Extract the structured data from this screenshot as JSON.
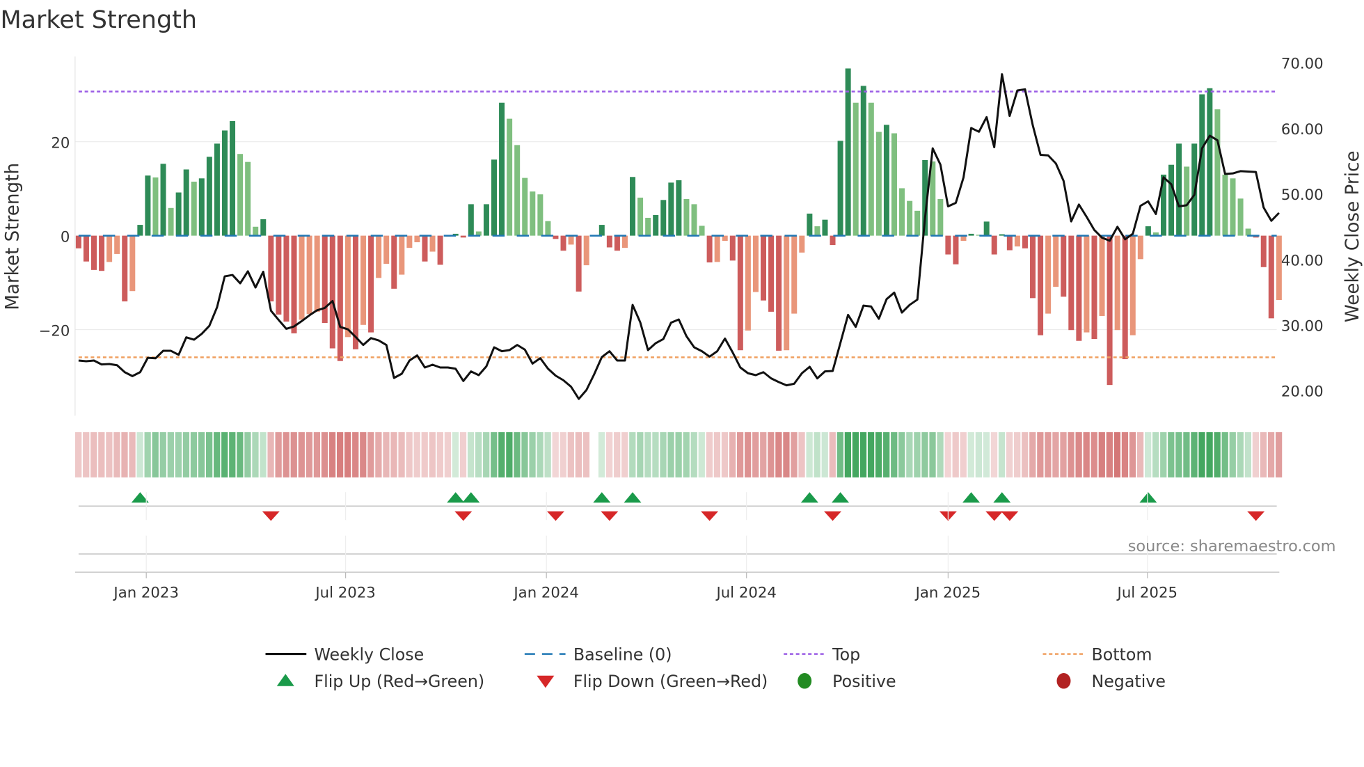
{
  "chart_data": {
    "type": "bar",
    "title": "Market Strength",
    "ylabel": "Market Strength",
    "y2label": "Weekly Close Price",
    "ylim": [
      -38,
      38
    ],
    "y2lim": [
      15,
      70
    ],
    "yticks": [
      {
        "v": 20,
        "label": "20"
      },
      {
        "v": 0,
        "label": "0"
      },
      {
        "v": -20,
        "label": "−20"
      }
    ],
    "y2ticks": [
      {
        "v": 70,
        "label": "70.00"
      },
      {
        "v": 60,
        "label": "60.00"
      },
      {
        "v": 50,
        "label": "50.00"
      },
      {
        "v": 40,
        "label": "40.00"
      },
      {
        "v": 30,
        "label": "30.00"
      },
      {
        "v": 20,
        "label": "20.00"
      }
    ],
    "xticks": [
      {
        "week": 8.8,
        "label": "Jan 2023"
      },
      {
        "week": 34.7,
        "label": "Jul 2023"
      },
      {
        "week": 60.8,
        "label": "Jan 2024"
      },
      {
        "week": 86.8,
        "label": "Jul 2024"
      },
      {
        "week": 113,
        "label": "Jan 2025"
      },
      {
        "week": 138.9,
        "label": "Jul 2025"
      }
    ],
    "frequency": "weekly",
    "top_level": 30.7,
    "bottom_level": -25.9,
    "baseline": 0,
    "strength": [
      -2.7,
      -5.5,
      -7.3,
      -7.5,
      -5.6,
      -3.9,
      -14,
      -11.8,
      2.3,
      12.8,
      12.4,
      15.3,
      5.9,
      9.2,
      14.1,
      11.5,
      12.2,
      16.8,
      19.6,
      22.4,
      24.4,
      17.4,
      15.7,
      1.9,
      3.5,
      -14,
      -16.8,
      -18.3,
      -20.8,
      -17.9,
      -16.7,
      -16.2,
      -18.6,
      -24,
      -26.7,
      -21.6,
      -24.2,
      -19,
      -20.6,
      -9,
      -6,
      -11.3,
      -8.3,
      -2.6,
      -1.4,
      -5.5,
      -3.4,
      -6.2,
      -0.2,
      0.4,
      -0.4,
      6.7,
      0.9,
      6.7,
      16.2,
      28.3,
      24.9,
      19.3,
      12.3,
      9.4,
      8.8,
      3.1,
      -0.7,
      -3.2,
      -1.9,
      -11.9,
      -6.3,
      0,
      2.3,
      -2.5,
      -3.2,
      -2.6,
      12.5,
      8.1,
      3.8,
      4.4,
      7.6,
      11.3,
      11.8,
      7.8,
      6.7,
      2.1,
      -5.7,
      -5.6,
      -1.1,
      -5.3,
      -24.4,
      -20.2,
      -12,
      -13.8,
      -16.2,
      -24.5,
      -24.4,
      -16.6,
      -3.6,
      4.7,
      2,
      3.4,
      -2,
      20.2,
      35.6,
      28.3,
      31.9,
      28.3,
      22.1,
      23.6,
      21.8,
      10.1,
      7.4,
      5.3,
      16.1,
      15.8,
      7.8,
      -4,
      -6.1,
      -1.1,
      0.4,
      0.2,
      3,
      -4,
      0.3,
      -3.1,
      -2.3,
      -2.7,
      -13.3,
      -21.2,
      -16.6,
      -10.9,
      -13,
      -20.1,
      -22.4,
      -20.6,
      -22,
      -17.1,
      -31.8,
      -20.1,
      -26.3,
      -21.2,
      -5,
      2,
      0.7,
      13,
      15.1,
      19.6,
      14.7,
      19.6,
      30.1,
      31.4,
      26.9,
      13,
      12.2,
      7.9,
      1.5,
      -0.4,
      -6.7,
      -17.6,
      -13.7
    ],
    "weekly_close": [
      24.56,
      24.45,
      24.56,
      23.96,
      24.03,
      23.85,
      22.79,
      22.19,
      22.79,
      24.98,
      24.91,
      26.05,
      26.05,
      25.44,
      28.1,
      27.74,
      28.63,
      29.86,
      32.7,
      37.4,
      37.61,
      36.34,
      38.17,
      35.7,
      38.1,
      32.16,
      30.75,
      29.4,
      29.76,
      30.57,
      31.46,
      32.23,
      32.59,
      33.65,
      29.69,
      29.33,
      28.17,
      26.93,
      27.99,
      27.64,
      26.93,
      21.91,
      22.54,
      24.56,
      25.34,
      23.5,
      23.92,
      23.5,
      23.5,
      23.32,
      21.45,
      22.9,
      22.33,
      23.68,
      26.58,
      25.98,
      26.15,
      26.93,
      26.22,
      24.1,
      24.92,
      23.32,
      22.26,
      21.56,
      20.57,
      18.72,
      20.07,
      22.44,
      25.09,
      25.98,
      24.56,
      24.56,
      33.05,
      30.39,
      26.15,
      27.21,
      27.85,
      30.33,
      30.82,
      28.27,
      26.58,
      25.98,
      25.16,
      25.98,
      27.92,
      25.8,
      23.5,
      22.62,
      22.33,
      22.79,
      21.84,
      21.27,
      20.78,
      21.02,
      22.62,
      23.61,
      21.84,
      22.9,
      22.97,
      27.21,
      31.53,
      29.69,
      32.94,
      32.8,
      30.93,
      33.93,
      34.92,
      31.88,
      33.05,
      33.86,
      46.31,
      56.92,
      54.44,
      48.08,
      48.61,
      52.5,
      60.03,
      59.46,
      61.69,
      57.09,
      68.23,
      61.87,
      65.76,
      65.93,
      60.45,
      55.93,
      55.85,
      54.62,
      51.97,
      45.78,
      48.36,
      46.48,
      44.47,
      43.3,
      42.84,
      44.96,
      43.05,
      43.9,
      48.15,
      48.85,
      46.91,
      52.5,
      51.44,
      48.08,
      48.25,
      49.84,
      56.92,
      58.86,
      58.15,
      53.03,
      53.1,
      53.45,
      53.38,
      53.31,
      47.9,
      45.88,
      47.08
    ],
    "flip_up_weeks": [
      9,
      50,
      52,
      69,
      73,
      96,
      100,
      117,
      121,
      140
    ],
    "flip_down_weeks": [
      26,
      51,
      63,
      70,
      83,
      99,
      114,
      120,
      122,
      154
    ],
    "legend_placement": "bottom",
    "legend": {
      "weekly_close": "Weekly Close",
      "baseline": "Baseline (0)",
      "top": "Top",
      "bottom": "Bottom",
      "flip_up": "Flip Up (Red→Green)",
      "flip_down": "Flip Down (Green→Red)",
      "positive": "Positive",
      "negative": "Negative"
    },
    "source": "source: sharemaestro.com"
  },
  "colors": {
    "pos_strong": "#2e8b57",
    "pos_weak": "#7fbf7f",
    "neg_strong": "#cd5c5c",
    "neg_weak": "#e9967a",
    "line": "#111111",
    "baseline": "#1f77b4",
    "top": "#9b5de5",
    "bottom": "#f0a060",
    "flip_up": "#1a9a4a",
    "flip_down": "#d62728",
    "positive": "#228b22",
    "negative": "#b22222"
  }
}
